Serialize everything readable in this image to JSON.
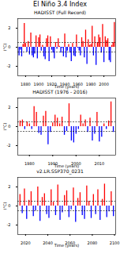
{
  "title": "El Niño 3.4 Index",
  "chart_data": [
    {
      "type": "bar",
      "title": "HADISST (Full Record)",
      "x_label": "Time (years)",
      "y_label": "(°C)",
      "x": [
        1870,
        1872,
        1874,
        1876,
        1878,
        1880,
        1882,
        1884,
        1886,
        1888,
        1890,
        1892,
        1894,
        1896,
        1898,
        1900,
        1902,
        1904,
        1906,
        1908,
        1910,
        1912,
        1914,
        1916,
        1918,
        1920,
        1922,
        1924,
        1926,
        1928,
        1930,
        1932,
        1934,
        1936,
        1938,
        1940,
        1942,
        1944,
        1946,
        1948,
        1950,
        1952,
        1954,
        1956,
        1958,
        1960,
        1962,
        1964,
        1966,
        1968,
        1970,
        1972,
        1974,
        1976,
        1978,
        1980,
        1982,
        1984,
        1986,
        1988,
        1990,
        1992,
        1994,
        1996,
        1998,
        2000,
        2002,
        2004,
        2006,
        2008,
        2010,
        2012,
        2014,
        2016
      ],
      "values": [
        -0.9,
        -0.3,
        -1.0,
        0.3,
        2.5,
        0.4,
        -0.5,
        0.6,
        -0.8,
        1.5,
        -0.9,
        -1.1,
        -0.7,
        1.2,
        -1.2,
        1.0,
        1.3,
        -0.4,
        0.2,
        -1.0,
        -1.3,
        0.9,
        1.2,
        -1.5,
        1.1,
        -0.3,
        -0.6,
        -1.2,
        0.5,
        -0.2,
        0.9,
        0.1,
        -0.6,
        -0.1,
        -1.0,
        1.4,
        -1.1,
        -0.4,
        0.3,
        -0.6,
        -1.5,
        0.4,
        -0.9,
        -1.0,
        1.3,
        -0.1,
        -0.4,
        -0.9,
        1.0,
        0.6,
        -1.1,
        1.8,
        -1.8,
        0.8,
        0.2,
        0.3,
        2.2,
        -0.9,
        1.1,
        -1.9,
        0.5,
        1.3,
        1.0,
        -0.6,
        2.4,
        -1.6,
        1.1,
        0.7,
        0.9,
        -1.4,
        -1.6,
        0.2,
        0.5,
        2.6
      ],
      "colors": [
        "blue",
        "blue",
        "blue",
        "red",
        "red",
        "red",
        "blue",
        "red",
        "blue",
        "red",
        "blue",
        "blue",
        "blue",
        "red",
        "blue",
        "red",
        "red",
        "blue",
        "red",
        "blue",
        "blue",
        "red",
        "red",
        "blue",
        "red",
        "blue",
        "blue",
        "blue",
        "red",
        "blue",
        "red",
        "red",
        "blue",
        "blue",
        "blue",
        "red",
        "blue",
        "blue",
        "red",
        "blue",
        "blue",
        "red",
        "blue",
        "blue",
        "red",
        "blue",
        "blue",
        "blue",
        "red",
        "red",
        "blue",
        "red",
        "blue",
        "red",
        "red",
        "red",
        "red",
        "blue",
        "red",
        "blue",
        "red",
        "red",
        "red",
        "blue",
        "red",
        "blue",
        "red",
        "red",
        "red",
        "blue",
        "blue",
        "red",
        "red",
        "red"
      ],
      "reference_lines": [
        0.5,
        -0.5
      ],
      "line_style": "dashed",
      "xlim": [
        1868,
        2018
      ],
      "xticks": [
        1880,
        1900,
        1920,
        1940,
        1960,
        1980,
        2000
      ],
      "ylim": [
        -3,
        3
      ],
      "yticks": [
        -2,
        0,
        2
      ],
      "grid": false
    },
    {
      "type": "bar",
      "title": "HADISST (1976 - 2016)",
      "x_label": "Time (years)",
      "y_label": "(°C)",
      "x": [
        1976,
        1977,
        1978,
        1979,
        1980,
        1981,
        1982,
        1983,
        1984,
        1985,
        1986,
        1987,
        1988,
        1989,
        1990,
        1991,
        1992,
        1993,
        1994,
        1995,
        1996,
        1997,
        1998,
        1999,
        2000,
        2001,
        2002,
        2003,
        2004,
        2005,
        2006,
        2007,
        2008,
        2009,
        2010,
        2011,
        2012,
        2013,
        2014,
        2015,
        2016
      ],
      "values": [
        0.6,
        0.7,
        -0.3,
        0.5,
        0.3,
        -0.3,
        2.1,
        1.5,
        -0.7,
        -0.9,
        1.1,
        1.6,
        -1.9,
        -0.6,
        0.4,
        1.2,
        0.9,
        0.3,
        1.0,
        -0.9,
        -0.5,
        2.4,
        -1.5,
        -1.7,
        -0.8,
        -0.3,
        1.2,
        0.3,
        0.7,
        -0.6,
        0.9,
        -1.5,
        -0.8,
        1.5,
        -1.6,
        -1.1,
        0.3,
        -0.3,
        0.6,
        2.6,
        -0.6
      ],
      "colors": [
        "red",
        "red",
        "blue",
        "red",
        "red",
        "blue",
        "red",
        "red",
        "blue",
        "blue",
        "red",
        "red",
        "blue",
        "blue",
        "red",
        "red",
        "red",
        "red",
        "red",
        "blue",
        "blue",
        "red",
        "blue",
        "blue",
        "blue",
        "blue",
        "red",
        "red",
        "red",
        "blue",
        "red",
        "blue",
        "blue",
        "red",
        "blue",
        "blue",
        "red",
        "blue",
        "red",
        "red",
        "blue"
      ],
      "reference_lines": [
        0.5,
        -0.5
      ],
      "line_style": "dashed",
      "xlim": [
        1975,
        2017
      ],
      "xticks": [
        1980,
        1990,
        2000,
        2010
      ],
      "ylim": [
        -3,
        3
      ],
      "yticks": [
        -2,
        0,
        2
      ],
      "grid": false
    },
    {
      "type": "bar",
      "title": "v2.LR.SSP370_0231",
      "x_label": "Time (years)",
      "y_label": "(°C)",
      "x": [
        2015,
        2017,
        2019,
        2021,
        2023,
        2025,
        2027,
        2029,
        2031,
        2033,
        2035,
        2037,
        2039,
        2041,
        2043,
        2045,
        2047,
        2049,
        2051,
        2053,
        2055,
        2057,
        2059,
        2061,
        2063,
        2065,
        2067,
        2069,
        2071,
        2073,
        2075,
        2077,
        2079,
        2081,
        2083,
        2085,
        2087,
        2089,
        2091,
        2093,
        2095,
        2097,
        2099
      ],
      "values": [
        1.2,
        -0.8,
        1.8,
        -1.4,
        0.6,
        1.5,
        -1.1,
        -0.5,
        2.0,
        -1.6,
        0.9,
        1.3,
        -0.9,
        -1.3,
        1.7,
        0.4,
        -1.0,
        2.2,
        -1.5,
        -0.7,
        1.1,
        1.6,
        -1.2,
        -0.4,
        1.9,
        -1.7,
        0.8,
        1.4,
        -1.0,
        -1.4,
        2.1,
        0.5,
        -1.3,
        1.2,
        -0.9,
        1.7,
        -1.5,
        0.7,
        2.3,
        -1.2,
        -0.6,
        1.5,
        -1.1
      ],
      "colors": [
        "red",
        "blue",
        "red",
        "blue",
        "red",
        "red",
        "blue",
        "blue",
        "red",
        "blue",
        "red",
        "red",
        "blue",
        "blue",
        "red",
        "red",
        "blue",
        "red",
        "blue",
        "blue",
        "red",
        "red",
        "blue",
        "blue",
        "red",
        "blue",
        "red",
        "red",
        "blue",
        "blue",
        "red",
        "red",
        "blue",
        "red",
        "blue",
        "red",
        "blue",
        "red",
        "red",
        "blue",
        "blue",
        "red",
        "blue"
      ],
      "reference_lines": [
        0.5,
        -0.5
      ],
      "line_style": "dashed",
      "xlim": [
        2013,
        2101
      ],
      "xticks": [
        2020,
        2040,
        2060,
        2080,
        2100
      ],
      "ylim": [
        -3,
        3
      ],
      "yticks": [
        -2,
        0,
        2
      ],
      "grid": false
    }
  ]
}
